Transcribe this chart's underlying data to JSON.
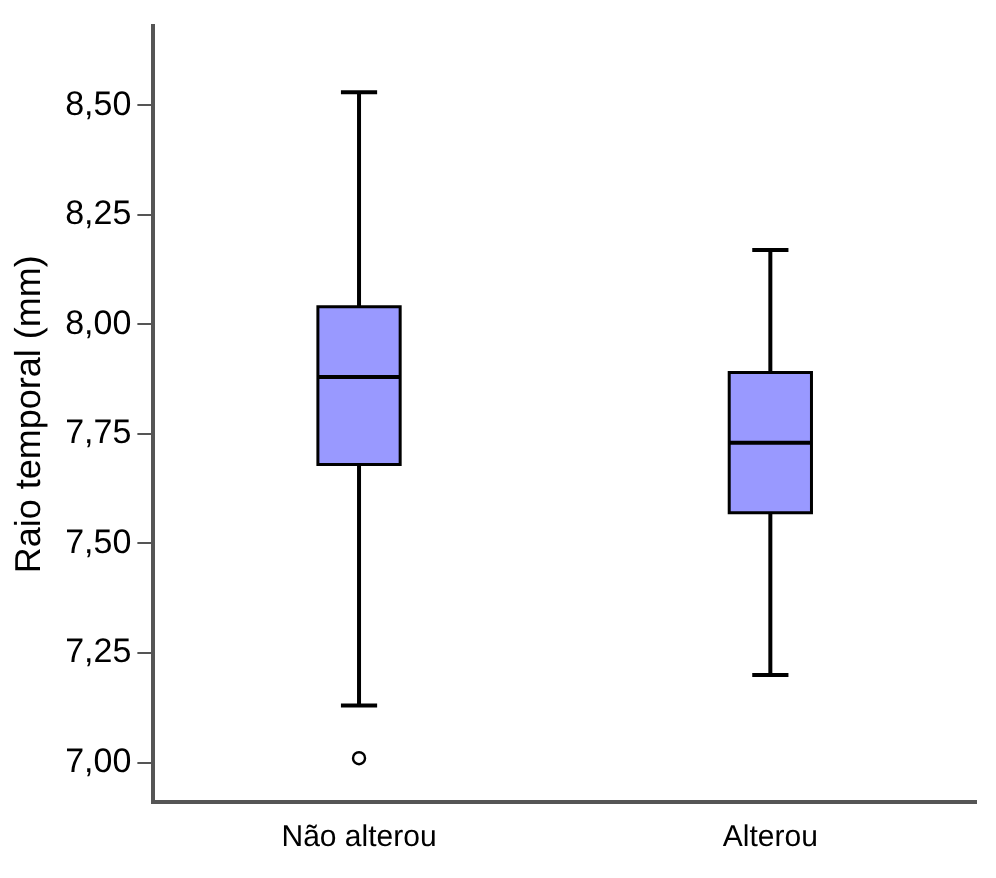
{
  "chart_data": {
    "type": "box",
    "ylabel": "Raio temporal (mm)",
    "categories": [
      "Não alterou",
      "Alterou"
    ],
    "color": "#9999ff",
    "boxes": [
      {
        "low": 7.13,
        "q1": 7.68,
        "median": 7.88,
        "q3": 8.04,
        "high": 8.53,
        "outliers": [
          7.01
        ]
      },
      {
        "low": 7.2,
        "q1": 7.57,
        "median": 7.73,
        "q3": 7.89,
        "high": 8.17
      }
    ],
    "ylim": [
      6.91,
      8.68
    ],
    "yticks": [
      {
        "value": 7,
        "label": "7,00"
      },
      {
        "value": 7.25,
        "label": "7,25"
      },
      {
        "value": 7.5,
        "label": "7,50"
      },
      {
        "value": 7.75,
        "label": "7,75"
      },
      {
        "value": 8,
        "label": "8,00"
      },
      {
        "value": 8.25,
        "label": "8,25"
      },
      {
        "value": 8.5,
        "label": "8,50"
      }
    ],
    "grid": false,
    "legend": false
  }
}
